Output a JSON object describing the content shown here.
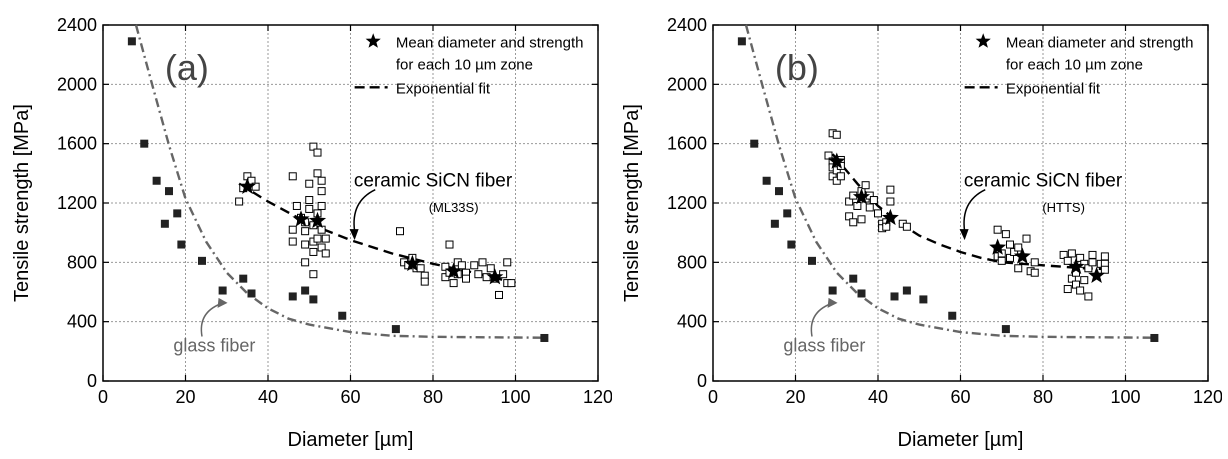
{
  "chart_data": [
    {
      "type": "scatter",
      "panel_label": "(a)",
      "xlabel": "Diameter [µm]",
      "ylabel": "Tensile strength [MPa]",
      "xlim": [
        0,
        120
      ],
      "ylim": [
        0,
        2400
      ],
      "xticks": [
        "0",
        "20",
        "40",
        "60",
        "80",
        "100",
        "120"
      ],
      "yticks": [
        "0",
        "400",
        "800",
        "1200",
        "1600",
        "2000",
        "2400"
      ],
      "grid": true,
      "legend": {
        "position": "top-right",
        "entries": [
          {
            "marker": "star",
            "label_line1": "Mean diameter and strength",
            "label_line2": "for each 10 µm zone"
          },
          {
            "marker": "dash",
            "label_line1": "Exponential fit",
            "label_line2": ""
          }
        ]
      },
      "annotations": {
        "fiber_name": "ceramic SiCN fiber",
        "fiber_code": "(ML33S)",
        "glass_label": "glass fiber"
      },
      "colors": {
        "axis": "#000000",
        "grid": "#9a9a9a",
        "glass": "#666666",
        "filled_marker": "#222222"
      },
      "series": [
        {
          "marker": "filled-square",
          "points": [
            [
              7,
              2290
            ],
            [
              10,
              1600
            ],
            [
              13,
              1350
            ],
            [
              15,
              1060
            ],
            [
              16,
              1280
            ],
            [
              18,
              1130
            ],
            [
              19,
              920
            ],
            [
              24,
              810
            ],
            [
              29,
              610
            ],
            [
              34,
              690
            ],
            [
              36,
              590
            ],
            [
              46,
              570
            ],
            [
              49,
              610
            ],
            [
              51,
              550
            ],
            [
              58,
              440
            ],
            [
              71,
              350
            ],
            [
              107,
              290
            ]
          ]
        },
        {
          "marker": "open-square",
          "points": [
            [
              33,
              1210
            ],
            [
              34,
              1300
            ],
            [
              35,
              1380
            ],
            [
              36,
              1350
            ],
            [
              37,
              1310
            ],
            [
              46,
              1020
            ],
            [
              46,
              1380
            ],
            [
              46,
              940
            ],
            [
              47,
              1180
            ],
            [
              48,
              1100
            ],
            [
              49,
              1070
            ],
            [
              49,
              1010
            ],
            [
              49,
              920
            ],
            [
              49,
              800
            ],
            [
              50,
              1220
            ],
            [
              50,
              1330
            ],
            [
              50,
              1160
            ],
            [
              51,
              1580
            ],
            [
              51,
              1050
            ],
            [
              51,
              940
            ],
            [
              51,
              870
            ],
            [
              51,
              720
            ],
            [
              52,
              1540
            ],
            [
              52,
              1400
            ],
            [
              52,
              1130
            ],
            [
              52,
              960
            ],
            [
              53,
              1350
            ],
            [
              53,
              1280
            ],
            [
              53,
              1180
            ],
            [
              53,
              1020
            ],
            [
              53,
              900
            ],
            [
              54,
              960
            ],
            [
              54,
              860
            ],
            [
              72,
              1010
            ],
            [
              73,
              800
            ],
            [
              74,
              780
            ],
            [
              75,
              830
            ],
            [
              76,
              760
            ],
            [
              77,
              760
            ],
            [
              78,
              710
            ],
            [
              78,
              670
            ],
            [
              83,
              770
            ],
            [
              83,
              700
            ],
            [
              84,
              730
            ],
            [
              84,
              920
            ],
            [
              85,
              660
            ],
            [
              86,
              800
            ],
            [
              86,
              720
            ],
            [
              87,
              780
            ],
            [
              88,
              730
            ],
            [
              88,
              690
            ],
            [
              90,
              780
            ],
            [
              91,
              720
            ],
            [
              92,
              800
            ],
            [
              93,
              700
            ],
            [
              94,
              760
            ],
            [
              95,
              690
            ],
            [
              96,
              580
            ],
            [
              97,
              720
            ],
            [
              98,
              800
            ],
            [
              98,
              660
            ],
            [
              99,
              660
            ]
          ]
        },
        {
          "marker": "star",
          "points": [
            [
              35,
              1310
            ],
            [
              48,
              1090
            ],
            [
              52,
              1080
            ],
            [
              75,
              790
            ],
            [
              85,
              740
            ],
            [
              95,
              700
            ]
          ]
        },
        {
          "line": "exponential-fit",
          "points": [
            [
              33,
              1330
            ],
            [
              40,
              1210
            ],
            [
              50,
              1060
            ],
            [
              60,
              950
            ],
            [
              70,
              860
            ],
            [
              80,
              790
            ],
            [
              90,
              730
            ],
            [
              100,
              660
            ]
          ]
        },
        {
          "line": "glass-fit",
          "points": [
            [
              8,
              2400
            ],
            [
              12,
              1990
            ],
            [
              16,
              1590
            ],
            [
              20,
              1230
            ],
            [
              25,
              940
            ],
            [
              30,
              730
            ],
            [
              35,
              590
            ],
            [
              40,
              490
            ],
            [
              45,
              420
            ],
            [
              50,
              380
            ],
            [
              60,
              330
            ],
            [
              70,
              305
            ],
            [
              80,
              298
            ],
            [
              90,
              295
            ],
            [
              100,
              293
            ],
            [
              107,
              292
            ]
          ]
        }
      ]
    },
    {
      "type": "scatter",
      "panel_label": "(b)",
      "xlabel": "Diameter [µm]",
      "ylabel": "Tensile strength [MPa]",
      "xlim": [
        0,
        120
      ],
      "ylim": [
        0,
        2400
      ],
      "xticks": [
        "0",
        "20",
        "40",
        "60",
        "80",
        "100",
        "120"
      ],
      "yticks": [
        "0",
        "400",
        "800",
        "1200",
        "1600",
        "2000",
        "2400"
      ],
      "grid": true,
      "legend": {
        "position": "top-right",
        "entries": [
          {
            "marker": "star",
            "label_line1": "Mean diameter and strength",
            "label_line2": "for each 10 µm zone"
          },
          {
            "marker": "dash",
            "label_line1": "Exponential fit",
            "label_line2": ""
          }
        ]
      },
      "annotations": {
        "fiber_name": "ceramic SiCN fiber",
        "fiber_code": "(HTTS)",
        "glass_label": "glass fiber"
      },
      "colors": {
        "axis": "#000000",
        "grid": "#9a9a9a",
        "glass": "#666666",
        "filled_marker": "#222222"
      },
      "series": [
        {
          "marker": "filled-square",
          "points": [
            [
              7,
              2290
            ],
            [
              10,
              1600
            ],
            [
              13,
              1350
            ],
            [
              15,
              1060
            ],
            [
              16,
              1280
            ],
            [
              18,
              1130
            ],
            [
              19,
              920
            ],
            [
              24,
              810
            ],
            [
              29,
              610
            ],
            [
              34,
              690
            ],
            [
              36,
              590
            ],
            [
              44,
              570
            ],
            [
              47,
              610
            ],
            [
              51,
              550
            ],
            [
              58,
              440
            ],
            [
              71,
              350
            ],
            [
              107,
              290
            ]
          ]
        },
        {
          "marker": "open-square",
          "points": [
            [
              28,
              1520
            ],
            [
              29,
              1670
            ],
            [
              29,
              1480
            ],
            [
              29,
              1440
            ],
            [
              29,
              1380
            ],
            [
              30,
              1660
            ],
            [
              30,
              1350
            ],
            [
              30,
              1420
            ],
            [
              31,
              1490
            ],
            [
              31,
              1380
            ],
            [
              31,
              1450
            ],
            [
              33,
              1110
            ],
            [
              33,
              1210
            ],
            [
              34,
              1070
            ],
            [
              34,
              1250
            ],
            [
              35,
              1180
            ],
            [
              36,
              1280
            ],
            [
              36,
              1090
            ],
            [
              37,
              1320
            ],
            [
              37,
              1230
            ],
            [
              38,
              1250
            ],
            [
              38,
              1170
            ],
            [
              39,
              1220
            ],
            [
              40,
              1130
            ],
            [
              41,
              1060
            ],
            [
              41,
              1030
            ],
            [
              42,
              1070
            ],
            [
              42,
              1040
            ],
            [
              43,
              1210
            ],
            [
              43,
              1290
            ],
            [
              46,
              1060
            ],
            [
              47,
              1040
            ],
            [
              69,
              1020
            ],
            [
              69,
              890
            ],
            [
              69,
              840
            ],
            [
              70,
              810
            ],
            [
              70,
              860
            ],
            [
              71,
              990
            ],
            [
              72,
              920
            ],
            [
              72,
              830
            ],
            [
              73,
              870
            ],
            [
              74,
              900
            ],
            [
              74,
              760
            ],
            [
              76,
              960
            ],
            [
              77,
              740
            ],
            [
              78,
              800
            ],
            [
              78,
              730
            ],
            [
              85,
              850
            ],
            [
              86,
              620
            ],
            [
              86,
              810
            ],
            [
              87,
              690
            ],
            [
              87,
              860
            ],
            [
              88,
              650
            ],
            [
              88,
              730
            ],
            [
              89,
              610
            ],
            [
              89,
              830
            ],
            [
              90,
              680
            ],
            [
              90,
              790
            ],
            [
              91,
              570
            ],
            [
              91,
              760
            ],
            [
              92,
              800
            ],
            [
              92,
              850
            ],
            [
              94,
              790
            ],
            [
              95,
              840
            ],
            [
              95,
              790
            ],
            [
              95,
              750
            ]
          ]
        },
        {
          "marker": "star",
          "points": [
            [
              30,
              1480
            ],
            [
              36,
              1240
            ],
            [
              43,
              1100
            ],
            [
              69,
              900
            ],
            [
              75,
              840
            ],
            [
              88,
              770
            ],
            [
              93,
              710
            ]
          ]
        },
        {
          "line": "exponential-fit",
          "points": [
            [
              29,
              1530
            ],
            [
              35,
              1330
            ],
            [
              40,
              1180
            ],
            [
              45,
              1070
            ],
            [
              50,
              980
            ],
            [
              55,
              920
            ],
            [
              60,
              870
            ],
            [
              65,
              830
            ],
            [
              70,
              800
            ],
            [
              80,
              780
            ],
            [
              90,
              760
            ],
            [
              95,
              755
            ]
          ]
        },
        {
          "line": "glass-fit",
          "points": [
            [
              8,
              2400
            ],
            [
              12,
              1990
            ],
            [
              16,
              1590
            ],
            [
              20,
              1230
            ],
            [
              25,
              940
            ],
            [
              30,
              730
            ],
            [
              35,
              590
            ],
            [
              40,
              490
            ],
            [
              45,
              420
            ],
            [
              50,
              380
            ],
            [
              60,
              330
            ],
            [
              70,
              305
            ],
            [
              80,
              298
            ],
            [
              90,
              295
            ],
            [
              100,
              293
            ],
            [
              107,
              292
            ]
          ]
        }
      ]
    }
  ]
}
